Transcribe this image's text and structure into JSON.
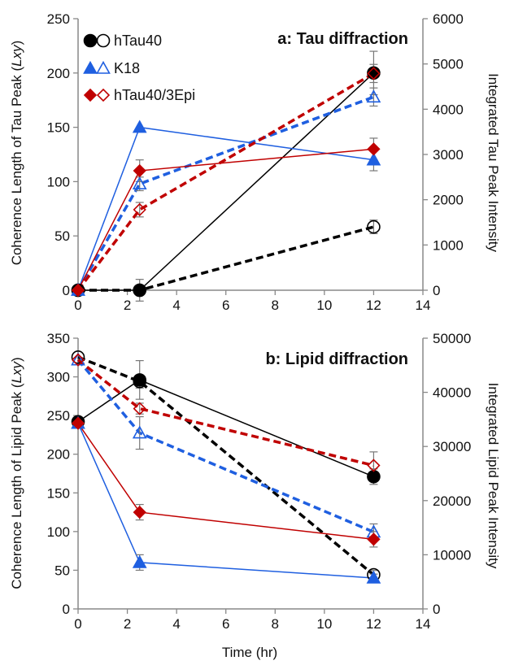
{
  "chart_data": [
    {
      "type": "line",
      "title": "a: Tau diffraction",
      "xlabel": "",
      "ylabel": "Coherence Length of Tau Peak (Lxy)",
      "ylabel_parts": [
        "Coherence Length of Tau Peak (",
        "Lxy",
        ")"
      ],
      "y2label": "Integrated Tau Peak Intensity",
      "xlim": [
        0,
        14
      ],
      "ylim": [
        0,
        250
      ],
      "y2lim": [
        0,
        6000
      ],
      "x_ticks": [
        0,
        2,
        4,
        6,
        8,
        10,
        12,
        14
      ],
      "y_ticks": [
        0,
        50,
        100,
        150,
        200,
        250
      ],
      "y2_ticks": [
        0,
        1000,
        2000,
        3000,
        4000,
        5000,
        6000
      ],
      "grid": false,
      "legend": {
        "placement": "top-left",
        "entries": [
          {
            "label": "hTau40",
            "filled_marker": "circle",
            "open_marker": "circle",
            "color": "#000000"
          },
          {
            "label": "K18",
            "filled_marker": "triangle",
            "open_marker": "triangle",
            "color": "#1f5fe0"
          },
          {
            "label": "hTau40/3Epi",
            "filled_marker": "diamond",
            "open_marker": "diamond",
            "color": "#c00000"
          }
        ]
      },
      "series": [
        {
          "group": "hTau40",
          "axis": "left",
          "style": "solid",
          "marker": "circle",
          "filled": true,
          "color": "#000000",
          "x": [
            0,
            2.5,
            12
          ],
          "y": [
            0,
            0,
            200
          ],
          "err": [
            0,
            10,
            20
          ]
        },
        {
          "group": "hTau40",
          "axis": "right",
          "style": "dashed",
          "marker": "circle",
          "filled": false,
          "color": "#000000",
          "x": [
            0,
            2.5,
            12
          ],
          "y": [
            0,
            0,
            1400
          ],
          "err": [
            0,
            0,
            150
          ]
        },
        {
          "group": "K18",
          "axis": "left",
          "style": "solid",
          "marker": "triangle",
          "filled": true,
          "color": "#1f5fe0",
          "x": [
            0,
            2.5,
            12
          ],
          "y": [
            0,
            150,
            120
          ],
          "err": [
            0,
            0,
            10
          ]
        },
        {
          "group": "K18",
          "axis": "right",
          "style": "dashed",
          "marker": "triangle",
          "filled": false,
          "color": "#1f5fe0",
          "x": [
            0,
            2.5,
            12
          ],
          "y": [
            0,
            2350,
            4270
          ],
          "err": [
            0,
            150,
            200
          ]
        },
        {
          "group": "hTau40/3Epi",
          "axis": "left",
          "style": "solid",
          "marker": "diamond",
          "filled": true,
          "color": "#c00000",
          "x": [
            0,
            2.5,
            12
          ],
          "y": [
            0,
            110,
            130
          ],
          "err": [
            0,
            10,
            10
          ]
        },
        {
          "group": "hTau40/3Epi",
          "axis": "right",
          "style": "dashed",
          "marker": "diamond",
          "filled": false,
          "color": "#c00000",
          "x": [
            0,
            2.5,
            12
          ],
          "y": [
            0,
            1780,
            4790
          ],
          "err": [
            0,
            160,
            200
          ]
        }
      ]
    },
    {
      "type": "line",
      "title": "b: Lipid diffraction",
      "xlabel": "Time (hr)",
      "ylabel": "Coherence Length of Lipid Peak (Lxy)",
      "ylabel_parts": [
        "Coherence Length of Lipid Peak (",
        "Lxy",
        ")"
      ],
      "y2label": "Integrated Lipid Peak Intensity",
      "xlim": [
        0,
        14
      ],
      "ylim": [
        0,
        350
      ],
      "y2lim": [
        0,
        50000
      ],
      "x_ticks": [
        0,
        2,
        4,
        6,
        8,
        10,
        12,
        14
      ],
      "y_ticks": [
        0,
        50,
        100,
        150,
        200,
        250,
        300,
        350
      ],
      "y2_ticks": [
        0,
        10000,
        20000,
        30000,
        40000,
        50000
      ],
      "grid": false,
      "series": [
        {
          "group": "hTau40",
          "axis": "left",
          "style": "solid",
          "marker": "circle",
          "filled": true,
          "color": "#000000",
          "x": [
            0,
            2.5,
            12
          ],
          "y": [
            242,
            296,
            171
          ],
          "err": [
            0,
            25,
            10
          ]
        },
        {
          "group": "hTau40",
          "axis": "right",
          "style": "dashed",
          "marker": "circle",
          "filled": false,
          "color": "#000000",
          "x": [
            0,
            2.5,
            12
          ],
          "y": [
            46500,
            42000,
            6300
          ],
          "err": [
            0,
            1200,
            800
          ]
        },
        {
          "group": "K18",
          "axis": "left",
          "style": "solid",
          "marker": "triangle",
          "filled": true,
          "color": "#1f5fe0",
          "x": [
            0,
            2.5,
            12
          ],
          "y": [
            240,
            60,
            40
          ],
          "err": [
            0,
            10,
            5
          ]
        },
        {
          "group": "K18",
          "axis": "right",
          "style": "dashed",
          "marker": "triangle",
          "filled": false,
          "color": "#1f5fe0",
          "x": [
            0,
            2.5,
            12
          ],
          "y": [
            46000,
            32500,
            14200
          ],
          "err": [
            0,
            3000,
            1500
          ]
        },
        {
          "group": "hTau40/3Epi",
          "axis": "left",
          "style": "solid",
          "marker": "diamond",
          "filled": true,
          "color": "#c00000",
          "x": [
            0,
            2.5,
            12
          ],
          "y": [
            240,
            125,
            90
          ],
          "err": [
            0,
            10,
            10
          ]
        },
        {
          "group": "hTau40/3Epi",
          "axis": "right",
          "style": "dashed",
          "marker": "diamond",
          "filled": false,
          "color": "#c00000",
          "x": [
            0,
            2.5,
            12
          ],
          "y": [
            46000,
            37000,
            26500
          ],
          "err": [
            0,
            1000,
            2500
          ]
        }
      ]
    }
  ]
}
